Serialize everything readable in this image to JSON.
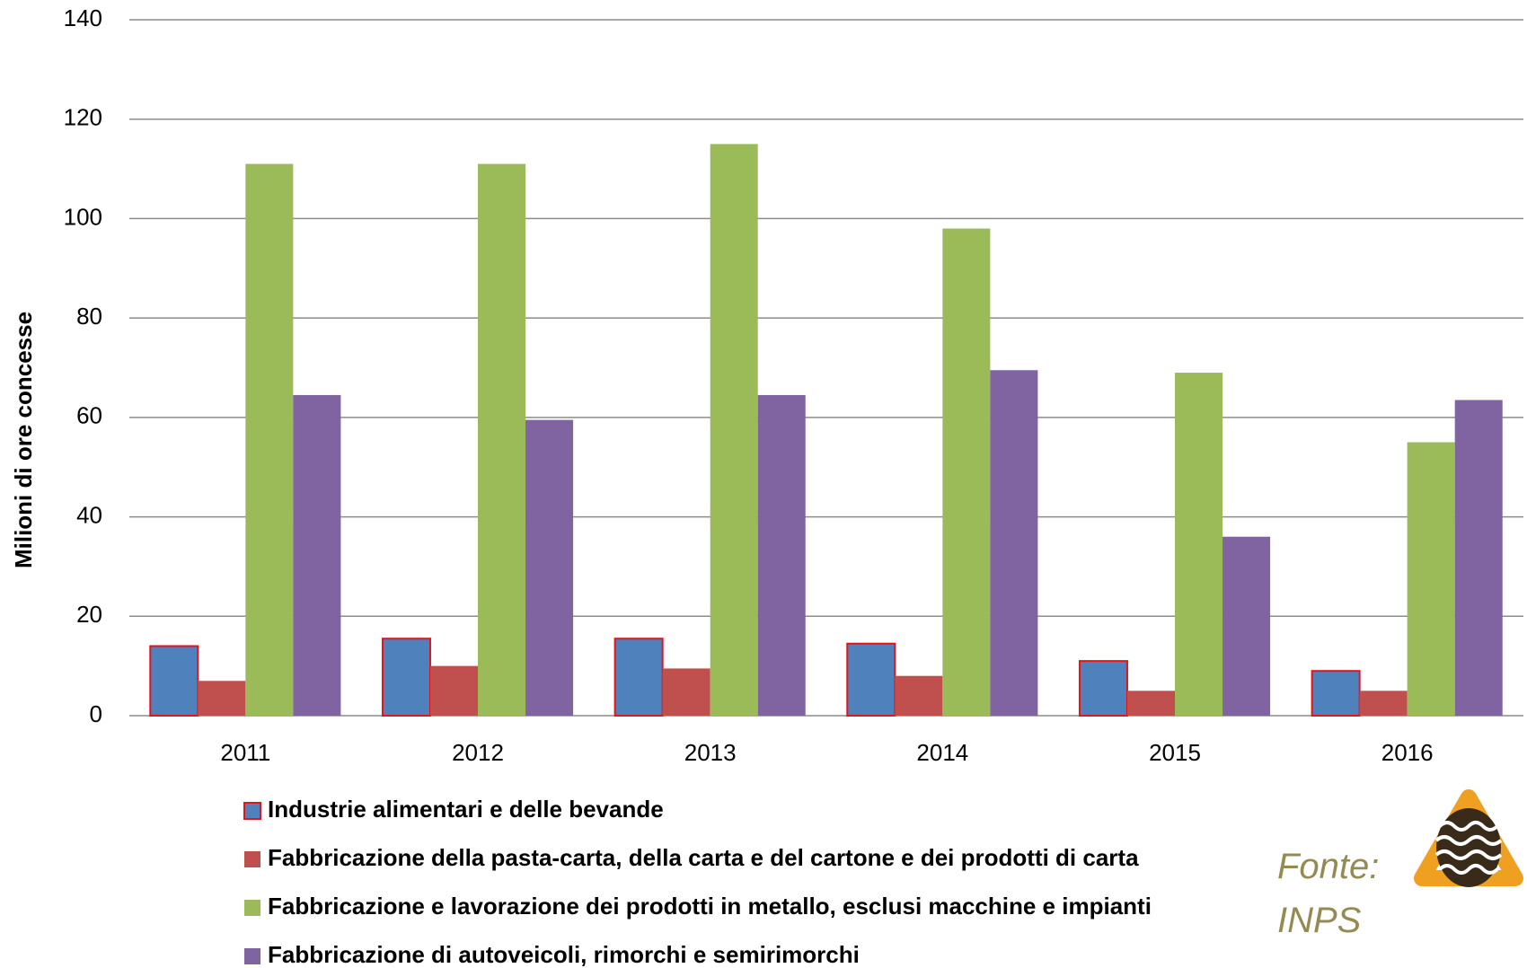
{
  "chart_data": {
    "type": "bar",
    "y_label": "Milioni di ore concesse",
    "source": "Fonte: INPS",
    "categories": [
      "2011",
      "2012",
      "2013",
      "2014",
      "2015",
      "2016"
    ],
    "series": [
      {
        "name": "Industrie alimentari e delle bevande",
        "color": "#4f81bd",
        "border": "#e0161c",
        "values": [
          14,
          15.5,
          15.5,
          14.5,
          11,
          9
        ]
      },
      {
        "name": "Fabbricazione della pasta-carta, della carta e del cartone e dei prodotti di carta",
        "color": "#c0504d",
        "values": [
          7,
          10,
          9.5,
          8,
          5,
          5
        ]
      },
      {
        "name": "Fabbricazione e lavorazione dei prodotti in metallo, esclusi macchine e impianti",
        "color": "#9bbb59",
        "values": [
          111,
          111,
          115,
          98,
          69,
          55
        ]
      },
      {
        "name": "Fabbricazione di autoveicoli, rimorchi e semirimorchi",
        "color": "#8064a2",
        "values": [
          64.5,
          59.5,
          64.5,
          69.5,
          36,
          63.5
        ]
      }
    ],
    "ylim": [
      0,
      140
    ],
    "yticks": [
      0,
      20,
      40,
      60,
      80,
      100,
      120,
      140
    ],
    "grid": true
  }
}
